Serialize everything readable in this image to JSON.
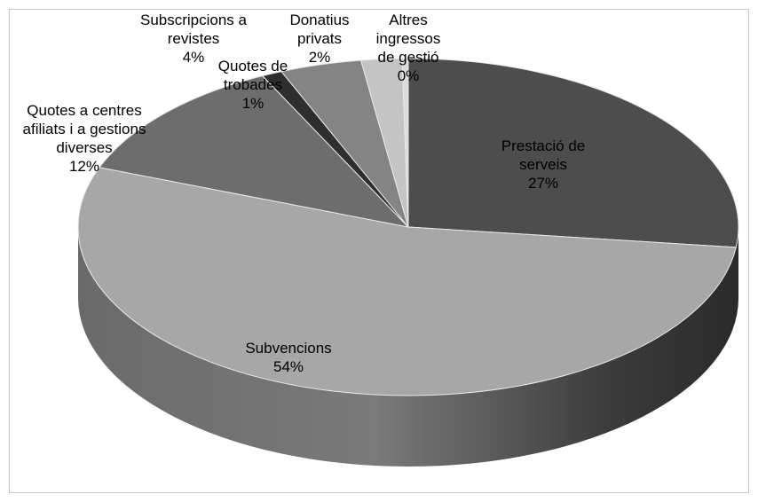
{
  "chart_data": {
    "type": "pie",
    "title": "",
    "legend": "none",
    "slices": [
      {
        "label_lines": [
          "Prestació de",
          "serveis"
        ],
        "percent_label": "27%",
        "value": 27,
        "color": "#4d4d4d"
      },
      {
        "label_lines": [
          "Subvencions"
        ],
        "percent_label": "54%",
        "value": 54,
        "color": "#a7a7a7"
      },
      {
        "label_lines": [
          "Quotes a centres",
          "afiliats i a gestions",
          "diverses"
        ],
        "percent_label": "12%",
        "value": 12,
        "color": "#6d6d6d"
      },
      {
        "label_lines": [
          "Quotes de",
          "trobades"
        ],
        "percent_label": "1%",
        "value": 1,
        "color": "#2e2e2e"
      },
      {
        "label_lines": [
          "Subscripcions a",
          "revistes"
        ],
        "percent_label": "4%",
        "value": 4,
        "color": "#848484"
      },
      {
        "label_lines": [
          "Donatius",
          "privats"
        ],
        "percent_label": "2%",
        "value": 2,
        "color": "#c4c4c4"
      },
      {
        "label_lines": [
          "Altres",
          "ingressos",
          "de gestió"
        ],
        "percent_label": "0%",
        "value": 0.3,
        "color": "#dcdcdc"
      }
    ]
  }
}
